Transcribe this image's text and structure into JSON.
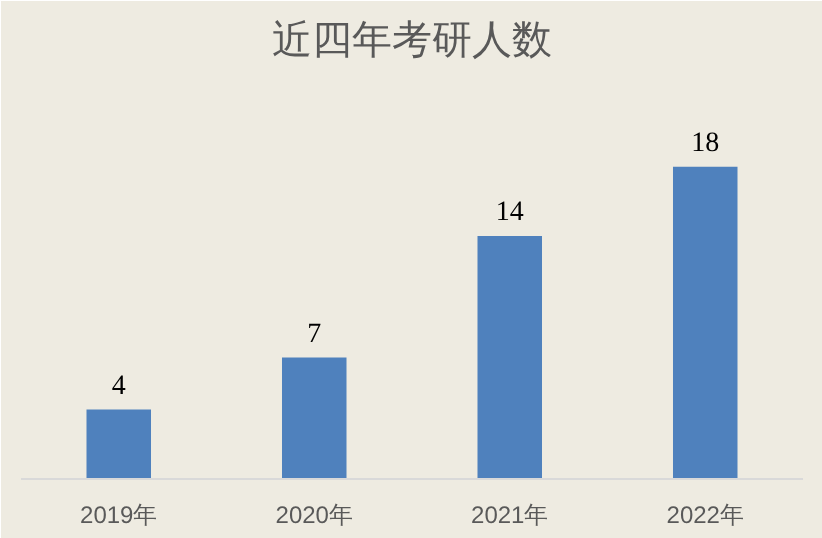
{
  "chart_data": {
    "type": "bar",
    "title": "近四年考研人数",
    "categories": [
      "2019年",
      "2020年",
      "2021年",
      "2022年"
    ],
    "values": [
      4,
      7,
      14,
      18
    ],
    "color": "#4f81bd",
    "data_labels": true
  }
}
